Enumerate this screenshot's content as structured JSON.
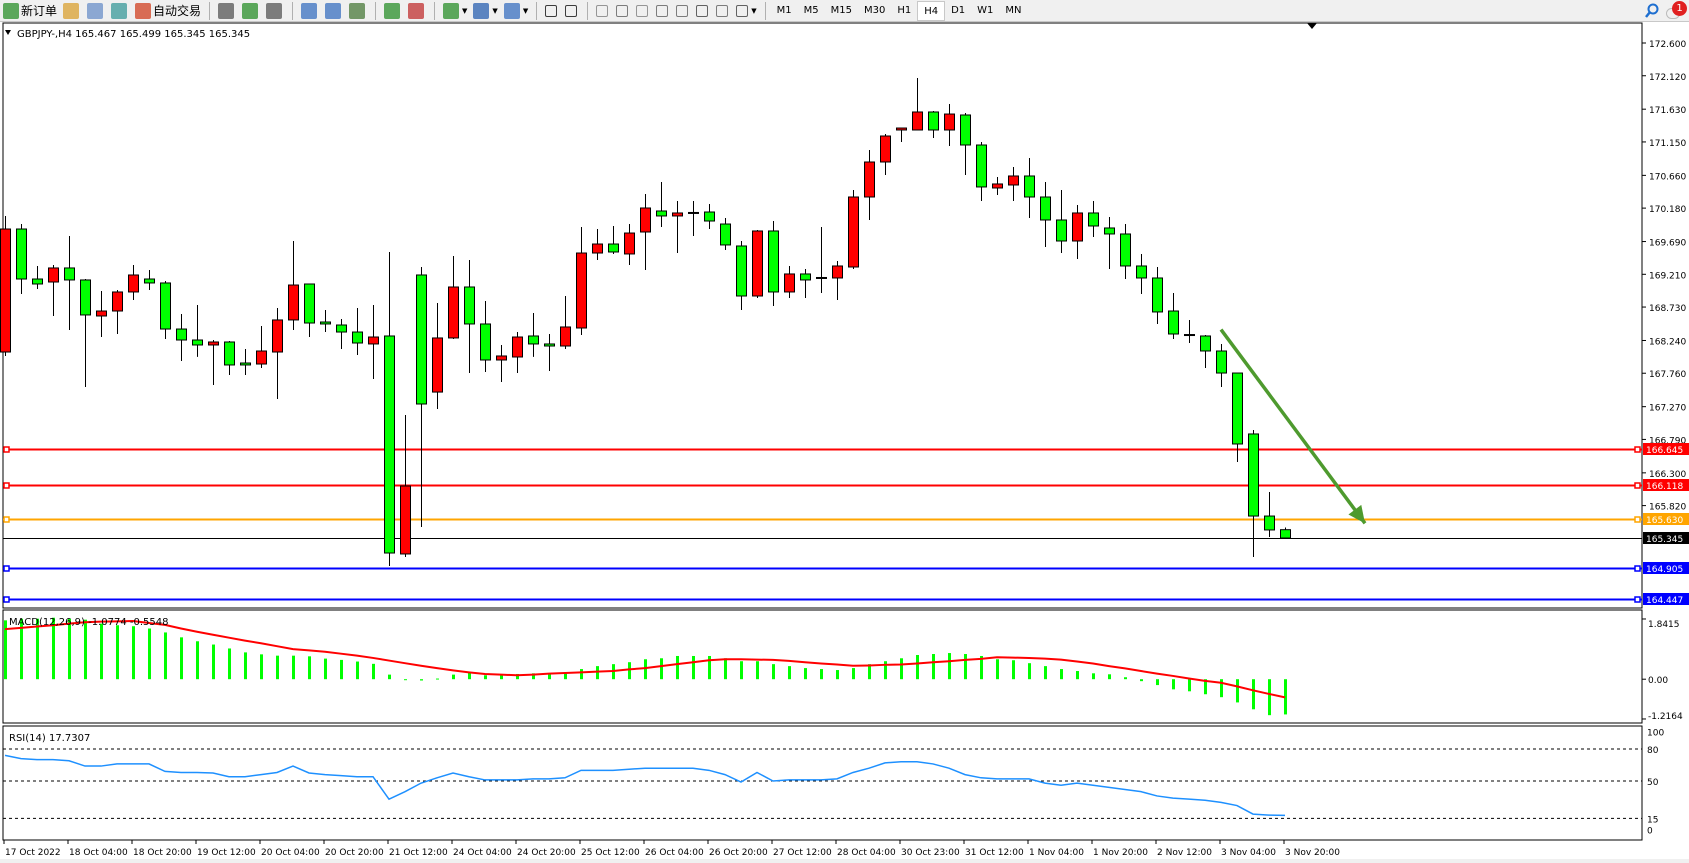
{
  "toolbar": {
    "new_order": "新订单",
    "auto_trading": "自动交易",
    "timeframes": [
      "M1",
      "M5",
      "M15",
      "M30",
      "H1",
      "H4",
      "D1",
      "W1",
      "MN"
    ],
    "active_timeframe": "H4",
    "notification_count": "1",
    "icons": [
      "new-order-icon",
      "meta-editor-icon",
      "market-watch-icon",
      "signals-icon",
      "auto-trading-icon",
      "bar-chart-icon",
      "candlestick-icon",
      "line-chart-icon",
      "zoom-in-icon",
      "zoom-out-icon",
      "tile-windows-icon",
      "auto-scroll-icon",
      "chart-shift-icon",
      "indicators-icon",
      "periods-icon",
      "templates-icon",
      "cursor-icon",
      "crosshair-icon",
      "vertical-line-icon",
      "horizontal-line-icon",
      "trendline-icon",
      "fibonacci-icon",
      "fibo-fan-icon",
      "text-icon",
      "text-label-icon",
      "arrows-icon"
    ]
  },
  "chart": {
    "symbol_header": "GBPJPY-,H4  165.467 165.499 165.345 165.345",
    "colors": {
      "up": "#ff0000",
      "down": "#00ff00",
      "macd_hist": "#00ff00",
      "macd_signal": "#ff0000",
      "rsi": "#1e90ff",
      "arrow": "#4e9a2e"
    },
    "price_axis": [
      "172.600",
      "172.120",
      "171.630",
      "171.150",
      "170.660",
      "170.180",
      "169.690",
      "169.210",
      "168.730",
      "168.240",
      "167.760",
      "167.270",
      "166.790",
      "166.300",
      "165.820"
    ],
    "levels": [
      {
        "price": "166.645",
        "color": "#ff0000"
      },
      {
        "price": "166.118",
        "color": "#ff0000"
      },
      {
        "price": "165.630",
        "color": "#ffa500"
      },
      {
        "price": "165.345",
        "color": "#000000"
      },
      {
        "price": "164.905",
        "color": "#0000ff"
      },
      {
        "price": "164.447",
        "color": "#0000ff"
      }
    ],
    "time_axis": [
      "17 Oct 2022",
      "18 Oct 04:00",
      "18 Oct 20:00",
      "19 Oct 12:00",
      "20 Oct 04:00",
      "20 Oct 20:00",
      "21 Oct 12:00",
      "24 Oct 04:00",
      "24 Oct 20:00",
      "25 Oct 12:00",
      "26 Oct 04:00",
      "26 Oct 20:00",
      "27 Oct 12:00",
      "28 Oct 04:00",
      "30 Oct 23:00",
      "31 Oct 12:00",
      "1 Nov 04:00",
      "1 Nov 20:00",
      "2 Nov 12:00",
      "3 Nov 04:00",
      "3 Nov 20:00"
    ],
    "arrow": {
      "from": {
        "candle": 77,
        "price": 168.4
      },
      "to": {
        "candle": 86,
        "price": 165.56
      }
    }
  },
  "macd": {
    "label": "MACD(12,26,9) -1.0774 -0.5548",
    "axis": [
      "1.8415",
      "0.00",
      "-1.2164"
    ]
  },
  "rsi": {
    "label": "RSI(14) 17.7307",
    "axis": [
      "100",
      "80",
      "50",
      "15",
      "0"
    ],
    "dashed_levels": [
      80,
      50,
      15
    ]
  },
  "chart_data": {
    "type": "candlestick",
    "ohlc_order": [
      "open",
      "high",
      "low",
      "close"
    ],
    "candles": [
      [
        168.071,
        170.065,
        168.013,
        169.874
      ],
      [
        169.874,
        169.947,
        168.922,
        169.141
      ],
      [
        169.141,
        169.332,
        168.995,
        169.068
      ],
      [
        169.097,
        169.346,
        168.599,
        169.303
      ],
      [
        169.303,
        169.771,
        168.394,
        169.127
      ],
      [
        169.127,
        169.141,
        167.558,
        168.614
      ],
      [
        168.599,
        168.966,
        168.291,
        168.672
      ],
      [
        168.672,
        168.98,
        168.335,
        168.951
      ],
      [
        168.951,
        169.346,
        168.833,
        169.2
      ],
      [
        169.141,
        169.273,
        168.98,
        169.083
      ],
      [
        169.083,
        169.112,
        168.262,
        168.408
      ],
      [
        168.408,
        168.628,
        167.939,
        168.247
      ],
      [
        168.247,
        168.76,
        168.0,
        168.174
      ],
      [
        168.174,
        168.247,
        167.587,
        168.218
      ],
      [
        168.218,
        168.233,
        167.734,
        167.881
      ],
      [
        167.91,
        168.115,
        167.734,
        167.881
      ],
      [
        167.895,
        168.452,
        167.837,
        168.086
      ],
      [
        168.071,
        168.716,
        167.382,
        168.541
      ],
      [
        168.541,
        169.698,
        168.394,
        169.053
      ],
      [
        169.068,
        169.068,
        168.291,
        168.496
      ],
      [
        168.511,
        168.687,
        168.364,
        168.482
      ],
      [
        168.467,
        168.555,
        168.115,
        168.364
      ],
      [
        168.364,
        168.716,
        168.027,
        168.203
      ],
      [
        168.189,
        168.76,
        167.675,
        168.291
      ],
      [
        168.306,
        169.537,
        164.934,
        165.125
      ],
      [
        165.111,
        167.148,
        165.067,
        166.107
      ],
      [
        169.2,
        169.317,
        165.507,
        167.309
      ],
      [
        167.484,
        168.79,
        167.236,
        168.277
      ],
      [
        168.277,
        169.478,
        168.262,
        169.024
      ],
      [
        169.024,
        169.42,
        167.763,
        168.482
      ],
      [
        168.482,
        168.819,
        167.778,
        167.954
      ],
      [
        167.954,
        168.174,
        167.631,
        168.013
      ],
      [
        167.998,
        168.364,
        167.763,
        168.291
      ],
      [
        168.306,
        168.643,
        168.0,
        168.189
      ],
      [
        168.189,
        168.335,
        167.793,
        168.159
      ],
      [
        168.159,
        168.892,
        168.115,
        168.438
      ],
      [
        168.423,
        169.903,
        168.32,
        169.522
      ],
      [
        169.522,
        169.874,
        169.42,
        169.654
      ],
      [
        169.654,
        169.918,
        169.508,
        169.537
      ],
      [
        169.508,
        169.947,
        169.346,
        169.815
      ],
      [
        169.83,
        170.387,
        169.273,
        170.182
      ],
      [
        170.138,
        170.563,
        169.903,
        170.065
      ],
      [
        170.065,
        170.284,
        169.522,
        170.109
      ],
      [
        170.109,
        170.284,
        169.771,
        170.109
      ],
      [
        170.123,
        170.24,
        169.874,
        169.991
      ],
      [
        169.947,
        170.035,
        169.566,
        169.64
      ],
      [
        169.625,
        169.698,
        168.687,
        168.892
      ],
      [
        168.892,
        169.859,
        168.863,
        169.845
      ],
      [
        169.845,
        169.991,
        168.745,
        168.951
      ],
      [
        168.951,
        169.332,
        168.863,
        169.215
      ],
      [
        169.215,
        169.288,
        168.863,
        169.127
      ],
      [
        169.156,
        169.903,
        168.936,
        169.156
      ],
      [
        169.156,
        169.405,
        168.833,
        169.332
      ],
      [
        169.317,
        170.446,
        169.288,
        170.343
      ],
      [
        170.343,
        171.032,
        170.006,
        170.856
      ],
      [
        170.856,
        171.266,
        170.665,
        171.237
      ],
      [
        171.325,
        171.354,
        171.149,
        171.354
      ],
      [
        171.325,
        172.087,
        171.325,
        171.589
      ],
      [
        171.589,
        171.603,
        171.208,
        171.325
      ],
      [
        171.325,
        171.706,
        171.091,
        171.559
      ],
      [
        171.545,
        171.574,
        170.665,
        171.105
      ],
      [
        171.105,
        171.149,
        170.284,
        170.49
      ],
      [
        170.475,
        170.636,
        170.372,
        170.534
      ],
      [
        170.519,
        170.783,
        170.284,
        170.651
      ],
      [
        170.651,
        170.915,
        170.035,
        170.343
      ],
      [
        170.343,
        170.563,
        169.61,
        170.006
      ],
      [
        170.006,
        170.446,
        169.522,
        169.698
      ],
      [
        169.698,
        170.226,
        169.434,
        170.109
      ],
      [
        170.109,
        170.284,
        169.757,
        169.918
      ],
      [
        169.889,
        170.05,
        169.288,
        169.801
      ],
      [
        169.801,
        169.947,
        169.141,
        169.332
      ],
      [
        169.332,
        169.508,
        168.922,
        169.156
      ],
      [
        169.156,
        169.317,
        168.482,
        168.658
      ],
      [
        168.672,
        168.936,
        168.262,
        168.335
      ],
      [
        168.32,
        168.541,
        168.203,
        168.32
      ],
      [
        168.306,
        168.32,
        167.837,
        168.086
      ],
      [
        168.086,
        168.189,
        167.558,
        167.763
      ],
      [
        167.763,
        167.763,
        166.459,
        166.723
      ],
      [
        166.87,
        166.928,
        165.067,
        165.667
      ],
      [
        165.667,
        166.019,
        165.36,
        165.463
      ],
      [
        165.467,
        165.499,
        165.345,
        165.345
      ]
    ],
    "macd_histogram": [
      1.8,
      1.85,
      1.85,
      1.88,
      1.85,
      1.82,
      1.7,
      1.65,
      1.62,
      1.55,
      1.43,
      1.28,
      1.16,
      1.06,
      0.94,
      0.82,
      0.76,
      0.72,
      0.72,
      0.7,
      0.63,
      0.59,
      0.54,
      0.47,
      0.14,
      -0.03,
      -0.04,
      0.02,
      0.14,
      0.2,
      0.12,
      0.12,
      0.16,
      0.18,
      0.15,
      0.21,
      0.31,
      0.4,
      0.46,
      0.52,
      0.61,
      0.64,
      0.71,
      0.71,
      0.71,
      0.64,
      0.55,
      0.55,
      0.46,
      0.4,
      0.34,
      0.31,
      0.28,
      0.34,
      0.46,
      0.55,
      0.64,
      0.74,
      0.77,
      0.8,
      0.77,
      0.71,
      0.61,
      0.58,
      0.49,
      0.4,
      0.31,
      0.25,
      0.18,
      0.15,
      0.06,
      -0.06,
      -0.18,
      -0.31,
      -0.37,
      -0.46,
      -0.55,
      -0.71,
      -0.92,
      -1.1,
      -1.0774
    ],
    "macd_signal": [
      1.53,
      1.57,
      1.61,
      1.65,
      1.7,
      1.74,
      1.76,
      1.77,
      1.78,
      1.72,
      1.66,
      1.55,
      1.45,
      1.36,
      1.27,
      1.18,
      1.1,
      1.01,
      0.92,
      0.88,
      0.84,
      0.78,
      0.72,
      0.65,
      0.57,
      0.49,
      0.41,
      0.34,
      0.27,
      0.21,
      0.16,
      0.14,
      0.12,
      0.14,
      0.17,
      0.19,
      0.21,
      0.23,
      0.25,
      0.3,
      0.34,
      0.4,
      0.46,
      0.52,
      0.58,
      0.61,
      0.61,
      0.6,
      0.59,
      0.56,
      0.52,
      0.48,
      0.45,
      0.41,
      0.42,
      0.44,
      0.45,
      0.48,
      0.52,
      0.55,
      0.59,
      0.62,
      0.67,
      0.66,
      0.65,
      0.63,
      0.6,
      0.54,
      0.48,
      0.4,
      0.33,
      0.25,
      0.17,
      0.1,
      0.02,
      -0.05,
      -0.11,
      -0.22,
      -0.34,
      -0.45,
      -0.5548
    ],
    "rsi": [
      74,
      71,
      70,
      70,
      69,
      64,
      64,
      66,
      66,
      66,
      59,
      58,
      58,
      57.5,
      54,
      54,
      56,
      58,
      64,
      57.5,
      56,
      55,
      54,
      54,
      33,
      40,
      48,
      53,
      57.5,
      54,
      51,
      51,
      51,
      52,
      52,
      53,
      60,
      60,
      60,
      61,
      62,
      62,
      62,
      62,
      60,
      56,
      49,
      58,
      50,
      51,
      51,
      51,
      52,
      58,
      62,
      67,
      68,
      68,
      66,
      62,
      56,
      53,
      52,
      52,
      52,
      48,
      46,
      48,
      46,
      44,
      42,
      40,
      36,
      34,
      33,
      32,
      30,
      27,
      19,
      18,
      17.7307
    ],
    "price_range": [
      164.36,
      172.6
    ],
    "macd_range": [
      -1.2164,
      1.8415
    ],
    "rsi_range": [
      0,
      100
    ]
  }
}
